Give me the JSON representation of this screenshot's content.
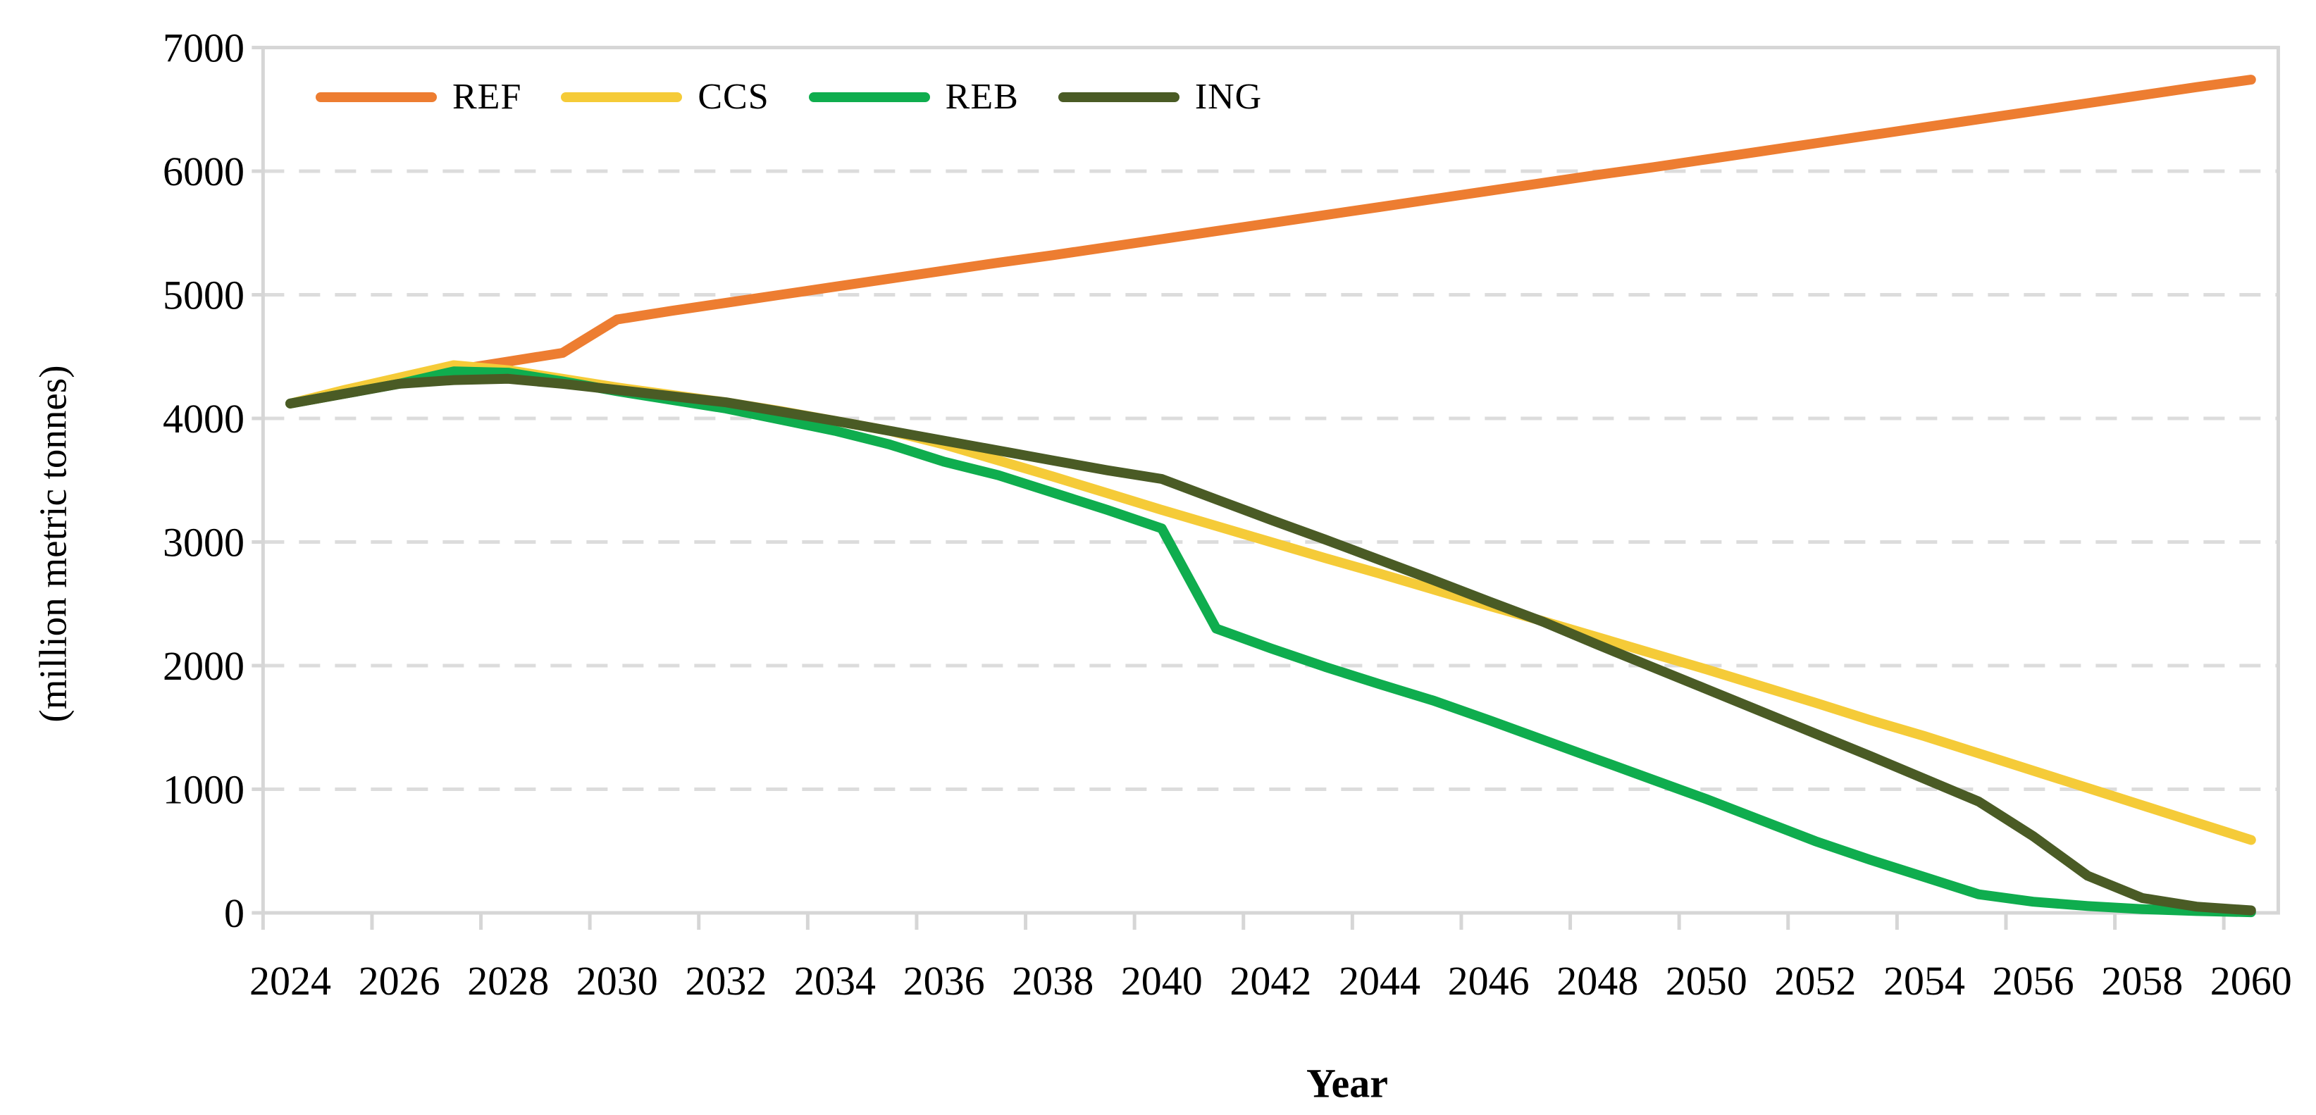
{
  "chart_data": {
    "type": "line",
    "title": "",
    "xlabel": "Year",
    "ylabel": "(million metric tonnes)",
    "x": [
      2024,
      2025,
      2026,
      2027,
      2028,
      2029,
      2030,
      2031,
      2032,
      2033,
      2034,
      2035,
      2036,
      2037,
      2038,
      2039,
      2040,
      2041,
      2042,
      2043,
      2044,
      2045,
      2046,
      2047,
      2048,
      2049,
      2050,
      2051,
      2052,
      2053,
      2054,
      2055,
      2056,
      2057,
      2058,
      2059,
      2060
    ],
    "x_tick_labels": [
      2024,
      2026,
      2028,
      2030,
      2032,
      2034,
      2036,
      2038,
      2040,
      2042,
      2044,
      2046,
      2048,
      2050,
      2052,
      2054,
      2056,
      2058,
      2060
    ],
    "y_ticks": [
      0,
      1000,
      2000,
      3000,
      4000,
      5000,
      6000,
      7000
    ],
    "ylim": [
      0,
      7000
    ],
    "xlim": [
      2023.5,
      2060.5
    ],
    "grid": "horizontal-dashed",
    "legend_position": "top-left-inside",
    "series": [
      {
        "name": "REF",
        "color": "#ED7D31",
        "values": [
          4120,
          4200,
          4290,
          4390,
          4460,
          4530,
          4800,
          4870,
          4935,
          5000,
          5065,
          5130,
          5195,
          5260,
          5320,
          5385,
          5450,
          5515,
          5580,
          5645,
          5710,
          5775,
          5840,
          5905,
          5970,
          6030,
          6095,
          6160,
          6225,
          6290,
          6355,
          6420,
          6485,
          6550,
          6615,
          6680,
          6740
        ]
      },
      {
        "name": "CCS",
        "color": "#F5CB38",
        "values": [
          4120,
          4230,
          4330,
          4430,
          4390,
          4320,
          4250,
          4190,
          4130,
          4060,
          3980,
          3900,
          3790,
          3660,
          3530,
          3395,
          3260,
          3130,
          3000,
          2870,
          2745,
          2615,
          2485,
          2360,
          2230,
          2100,
          1970,
          1835,
          1700,
          1560,
          1430,
          1290,
          1150,
          1010,
          870,
          730,
          590
        ]
      },
      {
        "name": "REB",
        "color": "#0FAD4E",
        "values": [
          4120,
          4200,
          4280,
          4380,
          4370,
          4300,
          4220,
          4150,
          4080,
          3990,
          3900,
          3790,
          3650,
          3540,
          3400,
          3260,
          3110,
          2300,
          2140,
          1990,
          1850,
          1715,
          1560,
          1400,
          1240,
          1080,
          920,
          750,
          580,
          430,
          290,
          150,
          90,
          55,
          30,
          15,
          5
        ]
      },
      {
        "name": "ING",
        "color": "#4A5B25",
        "values": [
          4120,
          4200,
          4280,
          4310,
          4320,
          4280,
          4230,
          4180,
          4130,
          4055,
          3980,
          3900,
          3820,
          3740,
          3660,
          3580,
          3510,
          3345,
          3180,
          3020,
          2855,
          2690,
          2520,
          2355,
          2170,
          1990,
          1810,
          1630,
          1450,
          1270,
          1085,
          900,
          620,
          300,
          120,
          50,
          20
        ]
      }
    ],
    "axis_color": "#D6D6D6",
    "gridline_color": "#DCDCDC",
    "tick_label_color": "#000000"
  }
}
